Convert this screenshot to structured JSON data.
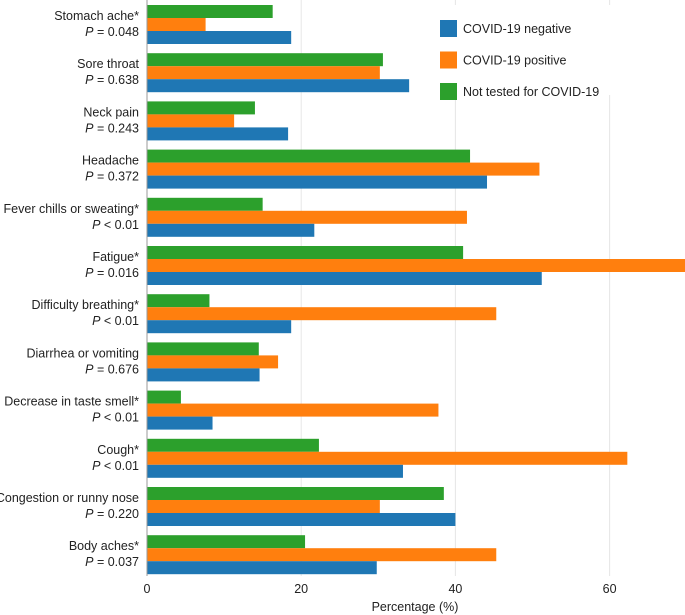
{
  "chart_data": {
    "type": "bar",
    "orientation": "horizontal",
    "title": "",
    "xlabel": "Percentage (%)",
    "ylabel": "",
    "xlim": [
      0,
      70
    ],
    "xticks": [
      0,
      20,
      40,
      60
    ],
    "grid": "vertical",
    "legend_position": "top-right",
    "categories": [
      {
        "name": "Stomach ache*",
        "p": "P = 0.048"
      },
      {
        "name": "Sore throat",
        "p": "P = 0.638"
      },
      {
        "name": "Neck pain",
        "p": "P = 0.243"
      },
      {
        "name": "Headache",
        "p": "P = 0.372"
      },
      {
        "name": "Fever chills or sweating*",
        "p": "P < 0.01"
      },
      {
        "name": "Fatigue*",
        "p": "P = 0.016"
      },
      {
        "name": "Difficulty breathing*",
        "p": "P < 0.01"
      },
      {
        "name": "Diarrhea or vomiting",
        "p": "P = 0.676"
      },
      {
        "name": "Decrease in taste smell*",
        "p": "P < 0.01"
      },
      {
        "name": "Cough*",
        "p": "P < 0.01"
      },
      {
        "name": "Congestion or runny nose",
        "p": "P = 0.220"
      },
      {
        "name": "Body aches*",
        "p": "P = 0.037"
      }
    ],
    "series": [
      {
        "name": "Not tested for COVID-19",
        "color": "#2ca02c",
        "values": [
          16.3,
          30.6,
          14.0,
          41.9,
          15.0,
          41.0,
          8.1,
          14.5,
          4.4,
          22.3,
          38.5,
          20.5
        ]
      },
      {
        "name": "COVID-19 positive",
        "color": "#ff7f0e",
        "values": [
          7.6,
          30.2,
          11.3,
          50.9,
          41.5,
          69.8,
          45.3,
          17.0,
          37.8,
          62.3,
          30.2,
          45.3
        ]
      },
      {
        "name": "COVID-19 negative",
        "color": "#1f77b4",
        "values": [
          18.7,
          34.0,
          18.3,
          44.1,
          21.7,
          51.2,
          18.7,
          14.6,
          8.5,
          33.2,
          40.0,
          29.8
        ]
      }
    ],
    "legend_order": [
      "COVID-19 negative",
      "COVID-19 positive",
      "Not tested for COVID-19"
    ]
  }
}
